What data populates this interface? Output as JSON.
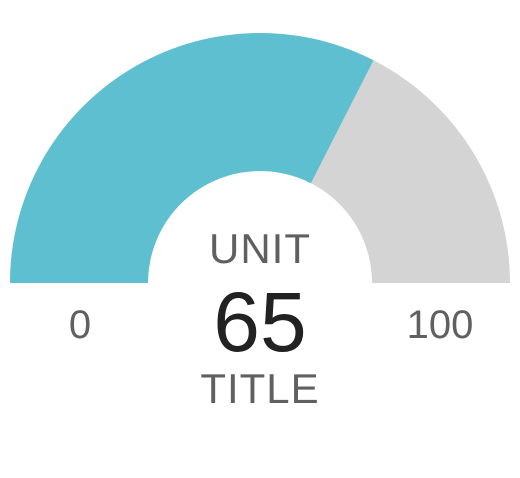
{
  "chart_data": {
    "type": "gauge",
    "value": 65,
    "min": 0,
    "max": 100,
    "unit": "UNIT",
    "title": "TITLE",
    "min_label": "0",
    "max_label": "100",
    "value_label": "65",
    "colors": {
      "value_arc": "#5dbfcf",
      "background_arc": "#d4d4d4",
      "text_primary": "#222222",
      "text_secondary": "#606060"
    }
  }
}
